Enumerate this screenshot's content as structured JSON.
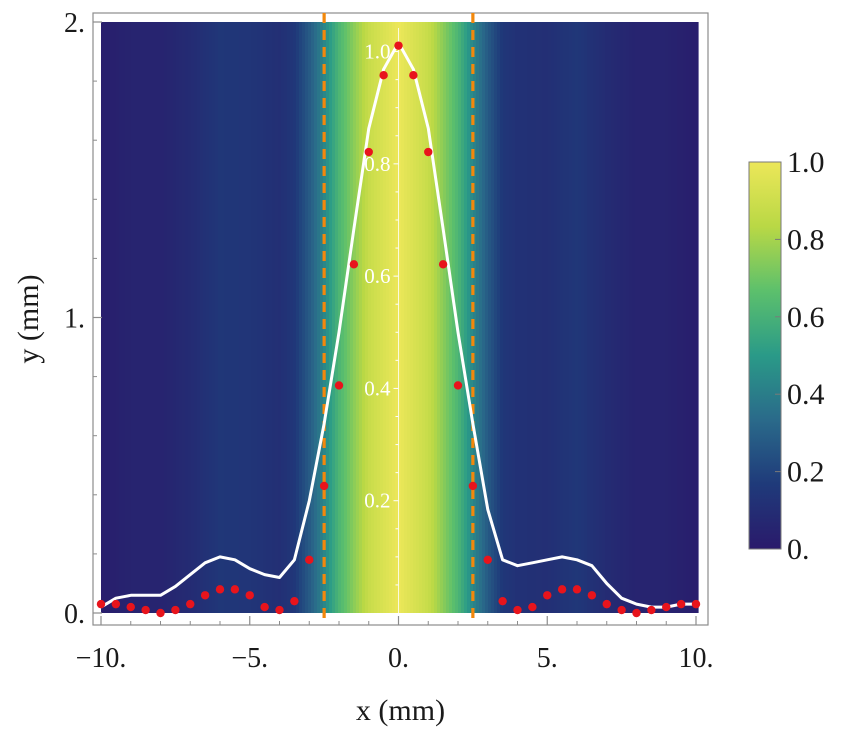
{
  "chart_data": {
    "type": "heatmap",
    "title": "",
    "xlabel": "x (mm)",
    "ylabel": "y (mm)",
    "xlim": [
      -10,
      10
    ],
    "ylim": [
      0,
      2
    ],
    "x_ticks": [
      {
        "value": -10,
        "label": "−10."
      },
      {
        "value": -5,
        "label": "−5."
      },
      {
        "value": 0,
        "label": "0."
      },
      {
        "value": 5,
        "label": "5."
      },
      {
        "value": 10,
        "label": "10."
      }
    ],
    "y_ticks": [
      {
        "value": 0,
        "label": "0."
      },
      {
        "value": 1,
        "label": "1."
      },
      {
        "value": 2,
        "label": "2."
      }
    ],
    "colorbar": {
      "range": [
        0,
        1
      ],
      "ticks": [
        {
          "value": 0,
          "label": "0."
        },
        {
          "value": 0.2,
          "label": "0.2"
        },
        {
          "value": 0.4,
          "label": "0.4"
        },
        {
          "value": 0.6,
          "label": "0.6"
        },
        {
          "value": 0.8,
          "label": "0.8"
        },
        {
          "value": 1.0,
          "label": "1.0"
        }
      ],
      "colors": [
        "#2a1a6b",
        "#1f3a7a",
        "#2a6a8a",
        "#2a9a88",
        "#5cc06c",
        "#b9d845",
        "#ece759"
      ]
    },
    "intensity_profile": {
      "description_scale": "normalized intensity vs x, mapped onto y range",
      "x": [
        -10,
        -9,
        -8,
        -7,
        -6,
        -5,
        -4,
        -3.5,
        -3,
        -2.5,
        -2,
        -1.5,
        -1,
        -0.5,
        0,
        0.5,
        1,
        1.5,
        2,
        2.5,
        3,
        3.5,
        4,
        5,
        6,
        7,
        8,
        9,
        10
      ],
      "intensity": [
        0.02,
        0.05,
        0.05,
        0.09,
        0.15,
        0.14,
        0.11,
        0.15,
        0.28,
        0.43,
        0.62,
        0.75,
        0.88,
        0.94,
        1.0,
        0.94,
        0.88,
        0.75,
        0.62,
        0.43,
        0.28,
        0.15,
        0.12,
        0.11,
        0.15,
        0.09,
        0.05,
        0.05,
        0.02
      ]
    },
    "series": [
      {
        "name": "simulation (white curve)",
        "color": "#ffffff",
        "type": "line",
        "x": [
          -10,
          -9.5,
          -9,
          -8,
          -7.5,
          -7,
          -6.5,
          -6,
          -5.5,
          -5,
          -4.5,
          -4,
          -3.5,
          -3,
          -2.5,
          -2,
          -1.5,
          -1,
          -0.5,
          0,
          0.5,
          1,
          1.5,
          2,
          2.5,
          3,
          3.5,
          4,
          4.5,
          5,
          5.5,
          6,
          6.5,
          7,
          7.5,
          8,
          8.5,
          9,
          9.5,
          10
        ],
        "y": [
          0.02,
          0.05,
          0.06,
          0.06,
          0.09,
          0.13,
          0.17,
          0.19,
          0.18,
          0.15,
          0.13,
          0.12,
          0.18,
          0.38,
          0.64,
          0.95,
          1.3,
          1.64,
          1.84,
          1.93,
          1.84,
          1.64,
          1.3,
          0.95,
          0.64,
          0.35,
          0.18,
          0.16,
          0.17,
          0.18,
          0.19,
          0.18,
          0.16,
          0.1,
          0.05,
          0.03,
          0.02,
          0.02,
          0.03,
          0.03
        ]
      },
      {
        "name": "measurement (red points)",
        "color": "#e8141c",
        "type": "scatter",
        "x": [
          -10,
          -9.5,
          -9,
          -8.5,
          -8,
          -7.5,
          -7,
          -6.5,
          -6,
          -5.5,
          -5,
          -4.5,
          -4,
          -3.5,
          -3,
          -2.5,
          -2,
          -1.5,
          -1,
          -0.5,
          0,
          0.5,
          1,
          1.5,
          2,
          2.5,
          3,
          3.5,
          4,
          4.5,
          5,
          5.5,
          6,
          6.5,
          7,
          7.5,
          8,
          8.5,
          9,
          9.5,
          10
        ],
        "y": [
          0.03,
          0.03,
          0.02,
          0.01,
          0.0,
          0.01,
          0.03,
          0.06,
          0.08,
          0.08,
          0.06,
          0.02,
          0.01,
          0.04,
          0.18,
          0.43,
          0.77,
          1.18,
          1.56,
          1.82,
          1.92,
          1.82,
          1.56,
          1.18,
          0.77,
          0.43,
          0.18,
          0.04,
          0.01,
          0.02,
          0.06,
          0.08,
          0.08,
          0.06,
          0.03,
          0.01,
          0.0,
          0.01,
          0.02,
          0.03,
          0.03
        ]
      }
    ],
    "vertical_lines": [
      {
        "x": -2.5,
        "color": "#f2880c",
        "style": "dashed"
      },
      {
        "x": 2.5,
        "color": "#f2880c",
        "style": "dashed"
      }
    ],
    "inner_scale": {
      "x": 0,
      "ticks": [
        {
          "value": 0.2,
          "label": "0.2"
        },
        {
          "value": 0.4,
          "label": "0.4"
        },
        {
          "value": 0.6,
          "label": "0.6"
        },
        {
          "value": 0.8,
          "label": "0.8"
        },
        {
          "value": 1.0,
          "label": "1.0"
        }
      ]
    }
  }
}
